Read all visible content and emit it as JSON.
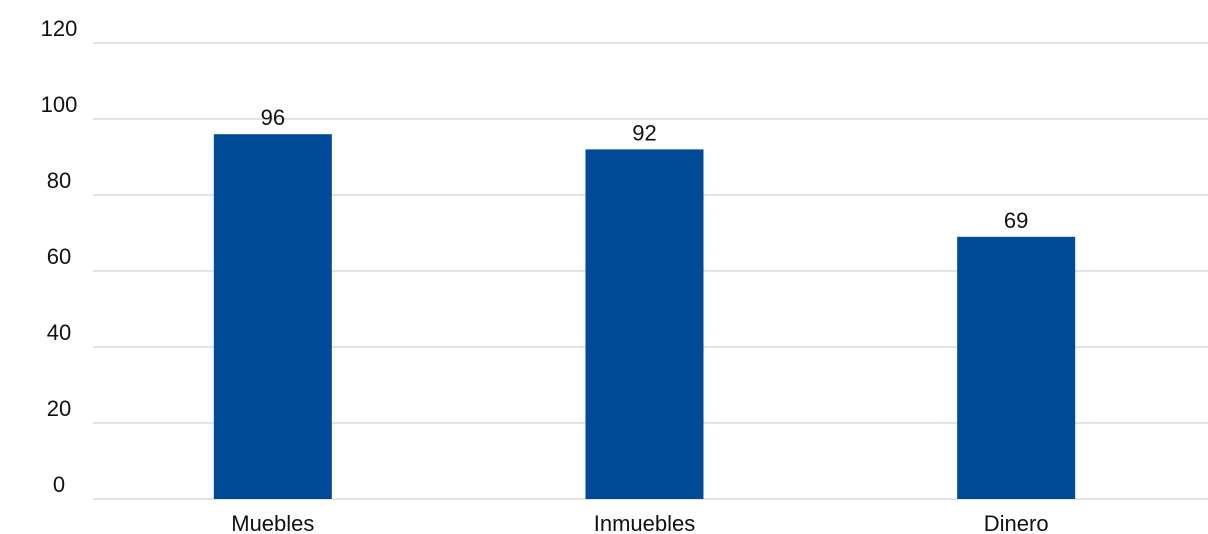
{
  "chart_data": {
    "type": "bar",
    "title": "",
    "xlabel": "",
    "ylabel": "",
    "categories": [
      "Muebles",
      "Inmuebles",
      "Dinero"
    ],
    "values": [
      96,
      92,
      69
    ],
    "data_labels": [
      "96",
      "92",
      "69"
    ],
    "ylim": [
      0,
      120
    ],
    "yticks": [
      0,
      20,
      40,
      60,
      80,
      100,
      120
    ],
    "ytick_labels": [
      "0",
      "20",
      "40",
      "60",
      "80",
      "100",
      "120"
    ],
    "grid": true,
    "legend": "none",
    "colors": {
      "bar": "#004a98",
      "grid": "#c8c8c8",
      "text": "#111111"
    }
  }
}
